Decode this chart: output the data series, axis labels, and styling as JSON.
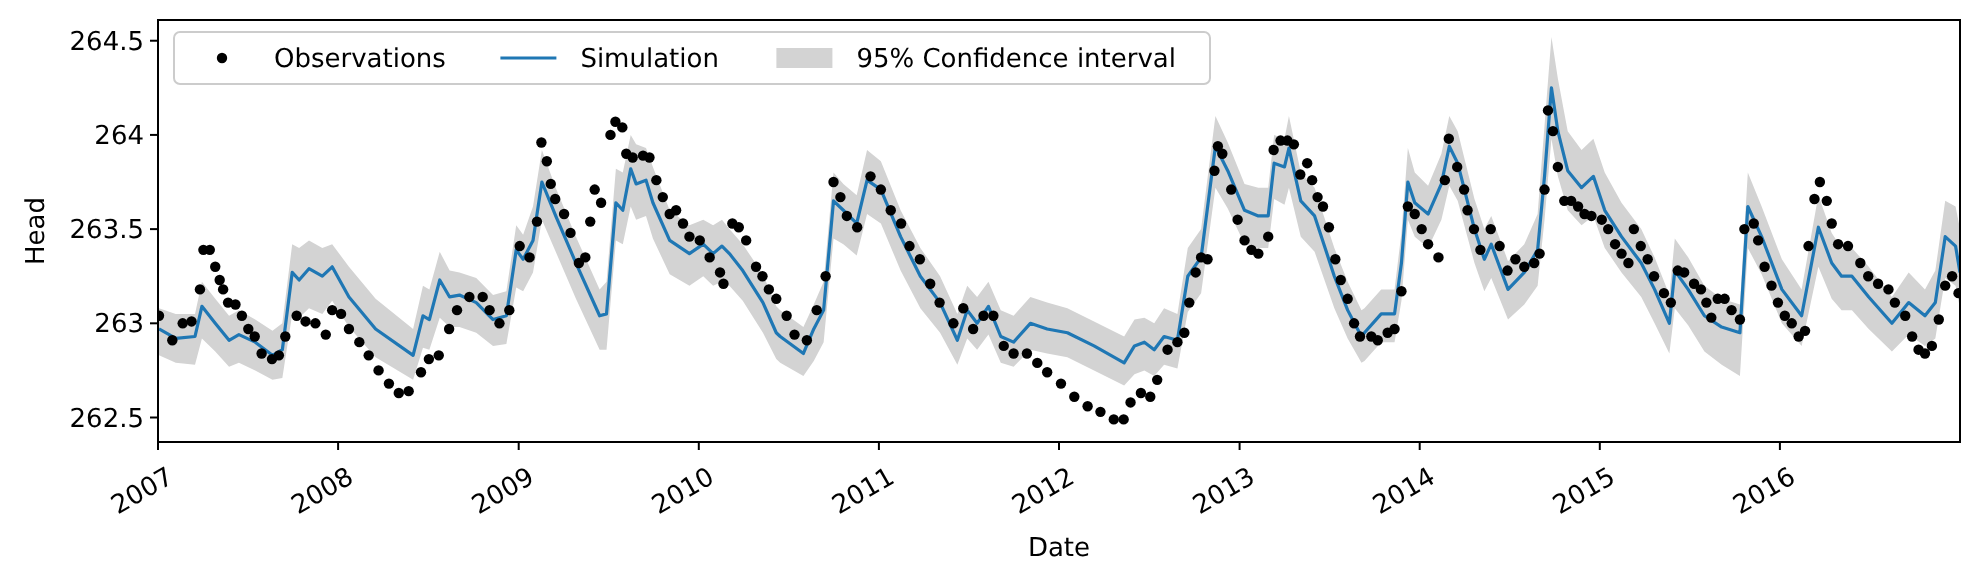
{
  "chart_data": {
    "type": "line",
    "annotations": [
      "95% Confidence interval"
    ],
    "xlabel": "Date",
    "ylabel": "Head",
    "xlim": [
      "2007-01-01",
      "2016-12-31"
    ],
    "xticks": [
      "2007",
      "2008",
      "2009",
      "2010",
      "2011",
      "2012",
      "2013",
      "2014",
      "2015",
      "2016"
    ],
    "ylim": [
      262.37,
      264.61
    ],
    "yticks": [
      262.5,
      263.0,
      263.5,
      264.0,
      264.5
    ],
    "grid": false,
    "legend": "top left",
    "series": [
      {
        "name": "Observations",
        "type": "scatter",
        "marker": "circle",
        "color": "#000000",
        "x": [
          "2007-01-03",
          "2007-01-30",
          "2007-02-20",
          "2007-03-10",
          "2007-03-27",
          "2007-04-03",
          "2007-04-16",
          "2007-04-27",
          "2007-05-06",
          "2007-05-13",
          "2007-05-23",
          "2007-06-07",
          "2007-06-20",
          "2007-07-03",
          "2007-07-16",
          "2007-07-30",
          "2007-08-20",
          "2007-09-03",
          "2007-09-16",
          "2007-10-09",
          "2007-10-27",
          "2007-11-16",
          "2007-12-07",
          "2007-12-20",
          "2008-01-07",
          "2008-01-23",
          "2008-02-13",
          "2008-03-03",
          "2008-03-23",
          "2008-04-13",
          "2008-05-03",
          "2008-05-23",
          "2008-06-17",
          "2008-07-03",
          "2008-07-23",
          "2008-08-13",
          "2008-08-29",
          "2008-09-23",
          "2008-10-20",
          "2008-11-03",
          "2008-11-23",
          "2008-12-13",
          "2009-01-03",
          "2009-01-23",
          "2009-02-07",
          "2009-02-16",
          "2009-02-27",
          "2009-03-07",
          "2009-03-16",
          "2009-04-03",
          "2009-04-16",
          "2009-05-03",
          "2009-05-16",
          "2009-05-26",
          "2009-06-04",
          "2009-06-17",
          "2009-07-06",
          "2009-07-16",
          "2009-07-30",
          "2009-08-07",
          "2009-08-20",
          "2009-09-10",
          "2009-09-23",
          "2009-10-07",
          "2009-10-20",
          "2009-11-03",
          "2009-11-16",
          "2009-11-30",
          "2009-12-13",
          "2010-01-03",
          "2010-01-23",
          "2010-02-13",
          "2010-02-20",
          "2010-03-10",
          "2010-03-23",
          "2010-04-07",
          "2010-04-27",
          "2010-05-10",
          "2010-05-23",
          "2010-06-07",
          "2010-06-28",
          "2010-07-14",
          "2010-08-08",
          "2010-08-28",
          "2010-09-15",
          "2010-10-01",
          "2010-10-15",
          "2010-10-28",
          "2010-11-18",
          "2010-12-15",
          "2011-01-05",
          "2011-01-25",
          "2011-02-15",
          "2011-03-04",
          "2011-03-25",
          "2011-04-15",
          "2011-05-04",
          "2011-06-01",
          "2011-06-21",
          "2011-07-11",
          "2011-08-01",
          "2011-08-21",
          "2011-09-11",
          "2011-10-01",
          "2011-10-28",
          "2011-11-18",
          "2011-12-08",
          "2012-01-05",
          "2012-02-01",
          "2012-02-28",
          "2012-03-25",
          "2012-04-21",
          "2012-05-11",
          "2012-05-25",
          "2012-06-15",
          "2012-07-04",
          "2012-07-18",
          "2012-08-08",
          "2012-08-28",
          "2012-09-11",
          "2012-09-21",
          "2012-10-04",
          "2012-10-15",
          "2012-10-28",
          "2012-11-11",
          "2012-11-18",
          "2012-11-27",
          "2012-12-15",
          "2012-12-28",
          "2013-01-11",
          "2013-01-25",
          "2013-02-08",
          "2013-02-28",
          "2013-03-11",
          "2013-03-25",
          "2013-04-08",
          "2013-04-21",
          "2013-05-04",
          "2013-05-18",
          "2013-05-28",
          "2013-06-08",
          "2013-06-19",
          "2013-07-01",
          "2013-07-14",
          "2013-07-25",
          "2013-08-08",
          "2013-08-21",
          "2013-09-02",
          "2013-09-25",
          "2013-10-08",
          "2013-10-28",
          "2013-11-11",
          "2013-11-25",
          "2013-12-08",
          "2013-12-22",
          "2014-01-05",
          "2014-01-18",
          "2014-02-08",
          "2014-02-21",
          "2014-03-01",
          "2014-03-18",
          "2014-04-01",
          "2014-04-08",
          "2014-04-21",
          "2014-05-04",
          "2014-05-25",
          "2014-06-12",
          "2014-06-28",
          "2014-07-14",
          "2014-08-01",
          "2014-08-21",
          "2014-09-01",
          "2014-09-11",
          "2014-09-18",
          "2014-09-28",
          "2014-10-08",
          "2014-10-21",
          "2014-11-04",
          "2014-11-18",
          "2014-12-01",
          "2014-12-15",
          "2015-01-05",
          "2015-01-18",
          "2015-02-01",
          "2015-02-14",
          "2015-02-28",
          "2015-03-11",
          "2015-03-25",
          "2015-04-08",
          "2015-04-21",
          "2015-05-11",
          "2015-05-25",
          "2015-06-08",
          "2015-06-21",
          "2015-07-11",
          "2015-07-25",
          "2015-08-05",
          "2015-08-15",
          "2015-08-28",
          "2015-09-11",
          "2015-09-25",
          "2015-10-12",
          "2015-10-21",
          "2015-11-09",
          "2015-11-18",
          "2015-12-01",
          "2015-12-15",
          "2015-12-28",
          "2016-01-11",
          "2016-01-25",
          "2016-02-08",
          "2016-02-21",
          "2016-02-28",
          "2016-03-11",
          "2016-03-22",
          "2016-04-05",
          "2016-04-15",
          "2016-04-28",
          "2016-05-18",
          "2016-06-12",
          "2016-06-28",
          "2016-07-18",
          "2016-08-08",
          "2016-08-21",
          "2016-09-11",
          "2016-09-25",
          "2016-10-08",
          "2016-10-21",
          "2016-11-04",
          "2016-11-18",
          "2016-12-01",
          "2016-12-15",
          "2016-12-28"
        ],
        "values": [
          263.04,
          262.91,
          263.0,
          263.01,
          263.18,
          263.39,
          263.39,
          263.3,
          263.23,
          263.18,
          263.11,
          263.1,
          263.04,
          262.97,
          262.93,
          262.84,
          262.81,
          262.83,
          262.93,
          263.04,
          263.01,
          263.0,
          262.94,
          263.07,
          263.05,
          262.97,
          262.9,
          262.83,
          262.75,
          262.68,
          262.63,
          262.64,
          262.74,
          262.81,
          262.83,
          262.97,
          263.07,
          263.14,
          263.14,
          263.07,
          263.0,
          263.07,
          263.41,
          263.35,
          263.54,
          263.96,
          263.86,
          263.74,
          263.66,
          263.58,
          263.48,
          263.32,
          263.35,
          263.54,
          263.71,
          263.64,
          264.0,
          264.07,
          264.04,
          263.9,
          263.88,
          263.89,
          263.88,
          263.76,
          263.67,
          263.58,
          263.6,
          263.53,
          263.46,
          263.44,
          263.35,
          263.27,
          263.21,
          263.53,
          263.51,
          263.44,
          263.3,
          263.25,
          263.18,
          263.13,
          263.04,
          262.94,
          262.91,
          263.07,
          263.25,
          263.75,
          263.67,
          263.57,
          263.51,
          263.78,
          263.71,
          263.6,
          263.53,
          263.41,
          263.34,
          263.21,
          263.11,
          263.0,
          263.08,
          262.97,
          263.04,
          263.04,
          262.88,
          262.84,
          262.84,
          262.79,
          262.74,
          262.68,
          262.61,
          262.56,
          262.53,
          262.49,
          262.49,
          262.58,
          262.63,
          262.61,
          262.7,
          262.86,
          262.9,
          262.95,
          263.11,
          263.27,
          263.35,
          263.34,
          263.81,
          263.94,
          263.9,
          263.71,
          263.55,
          263.44,
          263.39,
          263.37,
          263.46,
          263.92,
          263.97,
          263.97,
          263.95,
          263.79,
          263.85,
          263.76,
          263.67,
          263.62,
          263.51,
          263.34,
          263.23,
          263.13,
          263.0,
          262.93,
          262.93,
          262.91,
          262.95,
          262.97,
          263.17,
          263.62,
          263.58,
          263.5,
          263.42,
          263.35,
          263.76,
          263.98,
          263.83,
          263.71,
          263.6,
          263.5,
          263.39,
          263.5,
          263.41,
          263.28,
          263.34,
          263.3,
          263.32,
          263.37,
          263.71,
          264.13,
          264.02,
          263.83,
          263.65,
          263.65,
          263.62,
          263.58,
          263.57,
          263.55,
          263.5,
          263.42,
          263.37,
          263.32,
          263.5,
          263.41,
          263.34,
          263.25,
          263.16,
          263.11,
          263.28,
          263.27,
          263.21,
          263.18,
          263.11,
          263.03,
          263.13,
          263.13,
          263.07,
          263.02,
          263.5,
          263.53,
          263.44,
          263.3,
          263.2,
          263.11,
          263.04,
          263.0,
          262.93,
          262.96,
          263.41,
          263.66,
          263.75,
          263.65,
          263.53,
          263.42,
          263.41,
          263.32,
          263.25,
          263.21,
          263.18,
          263.11,
          263.04,
          262.93,
          262.86,
          262.84,
          262.88,
          263.02,
          263.2,
          263.25,
          263.16
        ]
      },
      {
        "name": "Simulation",
        "color": "#1f77b4",
        "line_style": "solid",
        "x": [
          "2007-01-03",
          "2007-02-06",
          "2007-03-17",
          "2007-03-31",
          "2007-04-27",
          "2007-05-25",
          "2007-06-14",
          "2007-07-17",
          "2007-08-21",
          "2007-09-10",
          "2007-09-30",
          "2007-10-14",
          "2007-11-03",
          "2007-11-30",
          "2007-12-20",
          "2008-01-23",
          "2008-03-17",
          "2008-06-01",
          "2008-06-21",
          "2008-07-04",
          "2008-07-25",
          "2008-08-14",
          "2008-09-03",
          "2008-10-07",
          "2008-11-10",
          "2008-12-07",
          "2008-12-27",
          "2009-01-10",
          "2009-01-30",
          "2009-02-17",
          "2009-03-17",
          "2009-04-27",
          "2009-06-14",
          "2009-06-28",
          "2009-07-17",
          "2009-07-31",
          "2009-08-16",
          "2009-08-27",
          "2009-09-16",
          "2009-09-30",
          "2009-11-03",
          "2009-12-13",
          "2010-01-10",
          "2010-01-30",
          "2010-02-17",
          "2010-03-04",
          "2010-03-31",
          "2010-05-11",
          "2010-06-07",
          "2010-06-15",
          "2010-08-01",
          "2010-08-22",
          "2010-09-11",
          "2010-10-01",
          "2010-10-21",
          "2010-11-17",
          "2010-12-08",
          "2011-01-05",
          "2011-02-14",
          "2011-03-26",
          "2011-05-05",
          "2011-06-09",
          "2011-06-29",
          "2011-07-19",
          "2011-08-11",
          "2011-09-05",
          "2011-10-01",
          "2011-11-04",
          "2011-12-08",
          "2012-01-18",
          "2012-03-12",
          "2012-05-12",
          "2012-06-02",
          "2012-06-22",
          "2012-07-12",
          "2012-08-01",
          "2012-08-28",
          "2012-09-18",
          "2012-10-15",
          "2012-11-13",
          "2012-12-08",
          "2013-01-11",
          "2013-02-08",
          "2013-02-28",
          "2013-03-12",
          "2013-04-02",
          "2013-04-11",
          "2013-05-05",
          "2013-06-02",
          "2013-07-12",
          "2013-08-08",
          "2013-09-05",
          "2013-09-11",
          "2013-10-15",
          "2013-11-11",
          "2013-11-25",
          "2013-12-08",
          "2013-12-22",
          "2014-01-18",
          "2014-02-14",
          "2014-03-02",
          "2014-03-19",
          "2014-04-22",
          "2014-05-12",
          "2014-05-26",
          "2014-06-29",
          "2014-08-01",
          "2014-08-28",
          "2014-09-11",
          "2014-09-25",
          "2014-10-08",
          "2014-10-28",
          "2014-11-25",
          "2014-12-19",
          "2015-01-11",
          "2015-02-14",
          "2015-03-26",
          "2015-04-22",
          "2015-05-22",
          "2015-06-02",
          "2015-06-29",
          "2015-08-01",
          "2015-09-05",
          "2015-10-12",
          "2015-10-28",
          "2015-11-25",
          "2016-01-05",
          "2016-02-14",
          "2016-03-19",
          "2016-04-15",
          "2016-05-05",
          "2016-05-26",
          "2016-06-29",
          "2016-08-15",
          "2016-09-18",
          "2016-10-21",
          "2016-11-11",
          "2016-12-01",
          "2016-12-22",
          "2016-12-31"
        ],
        "values": [
          262.97,
          262.92,
          262.93,
          263.09,
          263.0,
          262.91,
          262.94,
          262.9,
          262.83,
          262.86,
          263.27,
          263.23,
          263.29,
          263.25,
          263.3,
          263.14,
          262.97,
          262.83,
          263.04,
          263.02,
          263.23,
          263.14,
          263.15,
          263.11,
          263.02,
          263.04,
          263.39,
          263.34,
          263.44,
          263.75,
          263.57,
          263.32,
          263.04,
          263.05,
          263.64,
          263.6,
          263.82,
          263.74,
          263.76,
          263.64,
          263.44,
          263.37,
          263.42,
          263.37,
          263.41,
          263.37,
          263.28,
          263.11,
          262.95,
          262.93,
          262.84,
          262.97,
          263.07,
          263.65,
          263.6,
          263.53,
          263.76,
          263.71,
          263.46,
          263.25,
          263.11,
          262.91,
          263.07,
          263.0,
          263.09,
          262.93,
          262.9,
          263.0,
          262.97,
          262.95,
          262.88,
          262.79,
          262.88,
          262.9,
          262.86,
          262.93,
          262.91,
          263.25,
          263.35,
          263.94,
          263.81,
          263.6,
          263.57,
          263.57,
          263.85,
          263.83,
          263.93,
          263.65,
          263.57,
          263.25,
          263.07,
          262.93,
          262.95,
          263.05,
          263.05,
          263.32,
          263.75,
          263.64,
          263.58,
          263.74,
          263.94,
          263.85,
          263.5,
          263.34,
          263.42,
          263.18,
          263.27,
          263.39,
          263.78,
          264.25,
          264.02,
          263.81,
          263.72,
          263.78,
          263.6,
          263.46,
          263.32,
          263.18,
          263.0,
          263.28,
          263.18,
          263.04,
          262.98,
          262.95,
          263.62,
          263.46,
          263.18,
          263.04,
          263.51,
          263.32,
          263.25,
          263.25,
          263.14,
          263.0,
          263.11,
          263.04,
          263.11,
          263.46,
          263.41,
          263.27
        ],
        "lower": [
          262.83,
          262.79,
          262.78,
          262.92,
          262.85,
          262.77,
          262.79,
          262.75,
          262.7,
          262.71,
          263.05,
          263.03,
          263.08,
          263.05,
          263.12,
          262.98,
          262.82,
          262.7,
          262.87,
          262.86,
          263.03,
          262.98,
          262.98,
          262.95,
          262.88,
          262.89,
          263.19,
          263.17,
          263.27,
          263.55,
          263.38,
          263.13,
          262.86,
          262.86,
          263.44,
          263.42,
          263.62,
          263.55,
          263.57,
          263.45,
          263.26,
          263.2,
          263.25,
          263.2,
          263.22,
          263.2,
          263.12,
          262.95,
          262.81,
          262.79,
          262.72,
          262.8,
          262.9,
          263.45,
          263.42,
          263.36,
          263.58,
          263.53,
          263.28,
          263.08,
          262.95,
          262.78,
          262.92,
          262.86,
          262.94,
          262.79,
          262.77,
          262.86,
          262.84,
          262.82,
          262.75,
          262.67,
          262.73,
          262.75,
          262.72,
          262.78,
          262.76,
          263.06,
          263.16,
          263.72,
          263.61,
          263.42,
          263.4,
          263.4,
          263.66,
          263.63,
          263.72,
          263.46,
          263.38,
          263.08,
          262.92,
          262.79,
          262.8,
          262.9,
          262.9,
          263.12,
          263.55,
          263.46,
          263.4,
          263.55,
          263.73,
          263.65,
          263.32,
          263.17,
          263.24,
          263.02,
          263.1,
          263.2,
          263.55,
          263.98,
          263.78,
          263.6,
          263.52,
          263.57,
          263.4,
          263.27,
          263.14,
          263.0,
          262.84,
          263.08,
          262.99,
          262.85,
          262.78,
          262.72,
          263.4,
          263.26,
          263.0,
          262.88,
          263.3,
          263.13,
          263.07,
          263.07,
          262.97,
          262.85,
          262.94,
          262.88,
          262.92,
          263.24,
          263.2,
          263.08
        ],
        "upper": [
          263.08,
          263.05,
          263.05,
          263.22,
          263.13,
          263.04,
          263.07,
          263.02,
          262.96,
          263.0,
          263.42,
          263.4,
          263.44,
          263.4,
          263.42,
          263.3,
          263.13,
          262.97,
          263.2,
          263.18,
          263.38,
          263.28,
          263.27,
          263.24,
          263.15,
          263.17,
          263.52,
          263.47,
          263.62,
          263.92,
          263.72,
          263.46,
          263.18,
          263.22,
          263.82,
          263.8,
          264.0,
          263.95,
          263.93,
          263.83,
          263.6,
          263.52,
          263.55,
          263.52,
          263.55,
          263.5,
          263.42,
          263.26,
          263.09,
          263.07,
          262.98,
          263.1,
          263.22,
          263.8,
          263.74,
          263.68,
          263.92,
          263.86,
          263.6,
          263.4,
          263.25,
          263.05,
          263.2,
          263.14,
          263.22,
          263.07,
          263.04,
          263.14,
          263.11,
          263.08,
          263.01,
          262.93,
          263.02,
          263.03,
          263.0,
          263.08,
          263.05,
          263.4,
          263.5,
          264.1,
          263.96,
          263.74,
          263.72,
          263.72,
          264.0,
          263.98,
          264.1,
          263.8,
          263.72,
          263.4,
          263.22,
          263.07,
          263.08,
          263.18,
          263.18,
          263.48,
          263.93,
          263.8,
          263.73,
          263.9,
          264.1,
          264.02,
          263.66,
          263.5,
          263.57,
          263.33,
          263.42,
          263.58,
          264.05,
          264.52,
          264.3,
          264.02,
          263.92,
          263.98,
          263.8,
          263.64,
          263.5,
          263.35,
          263.15,
          263.45,
          263.35,
          263.2,
          263.13,
          263.1,
          263.8,
          263.62,
          263.34,
          263.18,
          263.68,
          263.48,
          263.4,
          263.4,
          263.3,
          263.14,
          263.27,
          263.18,
          263.28,
          263.65,
          263.62,
          263.5
        ]
      }
    ]
  }
}
